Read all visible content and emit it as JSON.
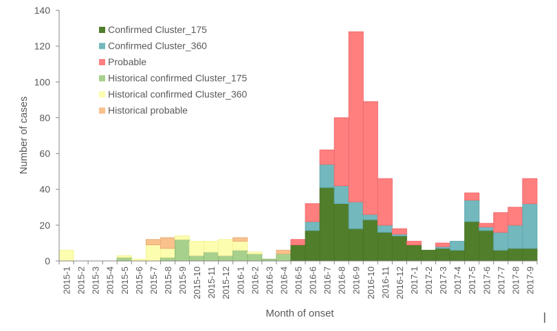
{
  "chart_data": {
    "type": "bar",
    "stacked": true,
    "title": "",
    "xlabel": "Month of onset",
    "ylabel": "Number of cases",
    "ylim": [
      0,
      140
    ],
    "yticks": [
      0,
      20,
      40,
      60,
      80,
      100,
      120,
      140
    ],
    "grid": false,
    "legend_position": "top-left",
    "categories": [
      "2015-1",
      "2015-2",
      "2015-3",
      "2015-4",
      "2015-5",
      "2015-6",
      "2015-7",
      "2015-8",
      "2015-9",
      "2015-10",
      "2015-11",
      "2015-12",
      "2016-1",
      "2016-2",
      "2016-3",
      "2016-4",
      "2016-5",
      "2016-6",
      "2016-7",
      "2016-8",
      "2016-9",
      "2016-10",
      "2016-11",
      "2016-12",
      "2017-1",
      "2017-2",
      "2017-3",
      "2017-4",
      "2017-5",
      "2017-6",
      "2017-7",
      "2017-8",
      "2017-9"
    ],
    "series": [
      {
        "name": "Confirmed Cluster_175",
        "color": "#507e2a",
        "values": [
          0,
          0,
          0,
          0,
          0,
          0,
          0,
          0,
          0,
          0,
          0,
          0,
          0,
          0,
          0,
          0,
          9,
          17,
          41,
          32,
          18,
          23,
          16,
          14,
          9,
          6,
          7,
          6,
          22,
          17,
          6,
          7,
          7
        ]
      },
      {
        "name": "Confirmed Cluster_360",
        "color": "#72b8bd",
        "values": [
          0,
          0,
          0,
          0,
          0,
          0,
          0,
          0,
          0,
          0,
          0,
          0,
          0,
          0,
          0,
          0,
          0,
          5,
          13,
          10,
          15,
          3,
          4,
          1,
          0,
          0,
          1,
          5,
          12,
          2,
          10,
          13,
          25
        ]
      },
      {
        "name": "Probable",
        "color": "#ff7f7f",
        "values": [
          0,
          0,
          0,
          0,
          0,
          0,
          0,
          0,
          0,
          0,
          0,
          0,
          0,
          0,
          0,
          0,
          3,
          10,
          8,
          38,
          95,
          63,
          26,
          3,
          2,
          0,
          2,
          0,
          4,
          2,
          11,
          10,
          14
        ]
      },
      {
        "name": "Historical confirmed Cluster_175",
        "color": "#a8d08d",
        "values": [
          0,
          0,
          0,
          0,
          2,
          0,
          0,
          2,
          12,
          3,
          5,
          3,
          6,
          4,
          1,
          4,
          0,
          0,
          0,
          0,
          0,
          0,
          0,
          0,
          0,
          0,
          0,
          0,
          0,
          0,
          0,
          0,
          0
        ]
      },
      {
        "name": "Historical confirmed Cluster_360",
        "color": "#fdfdb0",
        "values": [
          6,
          0,
          0,
          0,
          1,
          1,
          9,
          5,
          2,
          8,
          6,
          9,
          5,
          1,
          0,
          0,
          0,
          0,
          0,
          0,
          0,
          0,
          0,
          0,
          0,
          0,
          0,
          0,
          0,
          0,
          0,
          0,
          0
        ]
      },
      {
        "name": "Historical probable",
        "color": "#f9c18c",
        "values": [
          0,
          0,
          0,
          0,
          0,
          0,
          3,
          6,
          0,
          0,
          0,
          0,
          2,
          0,
          0,
          2,
          0,
          0,
          0,
          0,
          0,
          0,
          0,
          0,
          0,
          0,
          0,
          0,
          0,
          0,
          0,
          0,
          0
        ]
      }
    ]
  }
}
